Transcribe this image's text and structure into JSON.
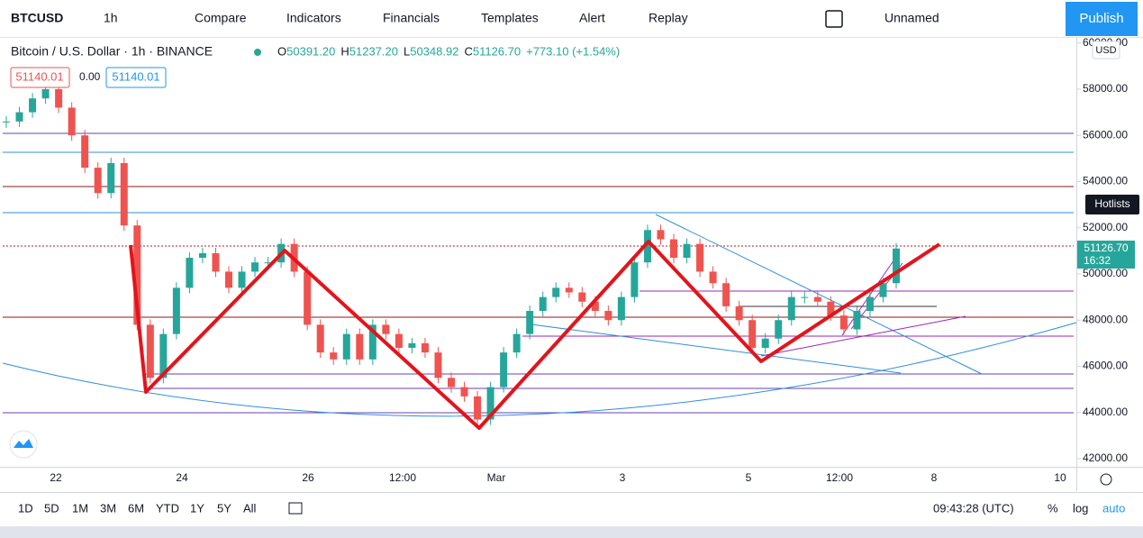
{
  "toolbar": {
    "symbol": "BTCUSD",
    "interval": "1h",
    "items": [
      "Compare",
      "Indicators",
      "Financials",
      "Templates",
      "Alert",
      "Replay"
    ],
    "layout_name": "Unnamed",
    "publish": "Publish"
  },
  "legend": {
    "title": "Bitcoin / U.S. Dollar · 1h · BINANCE",
    "ohlc": [
      {
        "key": "O",
        "value": "50391.20"
      },
      {
        "key": "H",
        "value": "51237.20"
      },
      {
        "key": "L",
        "value": "50348.92"
      },
      {
        "key": "C",
        "value": "51126.70"
      }
    ],
    "change": "+773.10 (+1.54%)",
    "bid": "51140.01",
    "spread": "0.00",
    "ask": "51140.01"
  },
  "chart": {
    "type": "candlestick",
    "ylim": [
      41650,
      60300
    ],
    "yticks": [
      {
        "value": 42000,
        "label": "42000.00"
      },
      {
        "value": 44000,
        "label": "44000.00"
      },
      {
        "value": 46000,
        "label": "46000.00"
      },
      {
        "value": 48000,
        "label": "48000.00"
      },
      {
        "value": 50000,
        "label": "50000.00"
      },
      {
        "value": 52000,
        "label": "52000.00"
      },
      {
        "value": 54000,
        "label": "54000.00"
      },
      {
        "value": 56000,
        "label": "56000.00"
      },
      {
        "value": 58000,
        "label": "58000.00"
      },
      {
        "value": 60000,
        "label": "60000.00"
      }
    ],
    "closes": [
      56600,
      57000,
      57600,
      58000,
      57200,
      56000,
      54600,
      53500,
      54800,
      52100,
      47800,
      45500,
      47400,
      49400,
      50700,
      50900,
      50100,
      49400,
      50100,
      50500,
      50500,
      51300,
      50100,
      47800,
      46600,
      46300,
      47400,
      46300,
      47800,
      47400,
      46800,
      47000,
      46600,
      45500,
      45100,
      44700,
      43700,
      45100,
      46600,
      47400,
      48400,
      49000,
      49400,
      49200,
      48800,
      48400,
      48000,
      49000,
      50500,
      51900,
      51500,
      50700,
      51300,
      50100,
      49600,
      48600,
      48000,
      46800,
      47200,
      48000,
      49000,
      49000,
      48800,
      48200,
      47600,
      48400,
      49000,
      49600,
      51100
    ],
    "currency": "USD",
    "last_price": "51126.70",
    "countdown": "16:32",
    "hotlists": "Hotlists",
    "x_labels": [
      "22",
      "24",
      "26",
      "12:00",
      "Mar",
      "3",
      "5",
      "12:00",
      "8",
      "10"
    ]
  },
  "bottom_bar": {
    "ranges": [
      "1D",
      "5D",
      "1M",
      "3M",
      "6M",
      "YTD",
      "1Y",
      "5Y",
      "All"
    ],
    "clock": "09:43:28 (UTC)",
    "percent": "%",
    "log": "log",
    "auto": "auto"
  }
}
